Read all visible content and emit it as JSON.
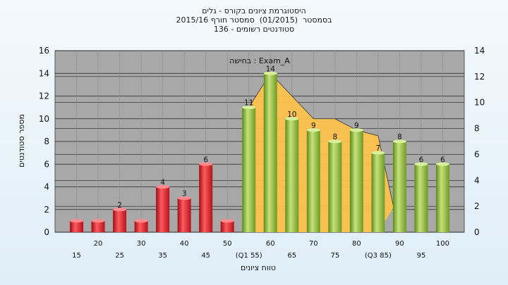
{
  "chart_data": {
    "type": "bar",
    "title_lines": [
      "היסטוגרמת ציונים בקורס - גלים",
      "בסמסטר  (01/2015)  סמסטר חורף 2015/16",
      "סטודנטים רשומים - 136"
    ],
    "annotation": "בחישה : Exam_A",
    "ylabel": "מספר סטודנטים",
    "xlabel": "טווח ציונים",
    "ylim": [
      0,
      16
    ],
    "y_ticks": [
      0,
      2,
      4,
      6,
      8,
      10,
      12,
      14,
      16
    ],
    "y2lim": [
      0,
      14
    ],
    "y2_ticks": [
      0,
      2,
      4,
      6,
      8,
      10,
      12,
      14
    ],
    "bars": [
      {
        "x": 10,
        "value": 1,
        "label": "",
        "group": "fail"
      },
      {
        "x": 15,
        "value": 1,
        "label": "",
        "group": "fail"
      },
      {
        "x": 20,
        "value": 2,
        "label": "2",
        "group": "fail"
      },
      {
        "x": 25,
        "value": 1,
        "label": "",
        "group": "fail"
      },
      {
        "x": 30,
        "value": 4,
        "label": "4",
        "group": "fail"
      },
      {
        "x": 35,
        "value": 3,
        "label": "3",
        "group": "fail"
      },
      {
        "x": 40,
        "value": 6,
        "label": "6",
        "group": "fail"
      },
      {
        "x": 45,
        "value": 1,
        "label": "",
        "group": "fail"
      },
      {
        "x": 50,
        "value": 11,
        "label": "11",
        "group": "pass"
      },
      {
        "x": 55,
        "value": 14,
        "label": "14",
        "group": "pass"
      },
      {
        "x": 60,
        "value": 10,
        "label": "10",
        "group": "pass"
      },
      {
        "x": 65,
        "value": 9,
        "label": "9",
        "group": "pass"
      },
      {
        "x": 70,
        "value": 8,
        "label": "8",
        "group": "pass"
      },
      {
        "x": 75,
        "value": 9,
        "label": "9",
        "group": "pass"
      },
      {
        "x": 80,
        "value": 7,
        "label": "7",
        "group": "pass"
      },
      {
        "x": 85,
        "value": 8,
        "label": "8",
        "group": "pass"
      },
      {
        "x": 90,
        "value": 6,
        "label": "6",
        "group": "pass"
      },
      {
        "x": 95,
        "value": 6,
        "label": "6",
        "group": "pass"
      }
    ],
    "x_tick_labels_lower": [
      {
        "x": 10,
        "text": "15"
      },
      {
        "x": 20,
        "text": "25"
      },
      {
        "x": 30,
        "text": "35"
      },
      {
        "x": 40,
        "text": "45"
      },
      {
        "x": 50,
        "text": "(Q1 55)"
      },
      {
        "x": 60,
        "text": "65"
      },
      {
        "x": 70,
        "text": "75"
      },
      {
        "x": 80,
        "text": "(Q3 85)"
      },
      {
        "x": 90,
        "text": "95"
      }
    ],
    "x_tick_labels_upper": [
      {
        "x": 15,
        "text": "20"
      },
      {
        "x": 25,
        "text": "30"
      },
      {
        "x": 35,
        "text": "40"
      },
      {
        "x": 45,
        "text": "50"
      },
      {
        "x": 55,
        "text": "60"
      },
      {
        "x": 65,
        "text": "70"
      },
      {
        "x": 75,
        "text": "80"
      },
      {
        "x": 85,
        "text": "90"
      },
      {
        "x": 95,
        "text": "100"
      }
    ],
    "interquartile_area": [
      {
        "x": 50,
        "y": 11
      },
      {
        "x": 55,
        "y": 14
      },
      {
        "x": 60,
        "y": 12
      },
      {
        "x": 65,
        "y": 10
      },
      {
        "x": 70,
        "y": 10
      },
      {
        "x": 75,
        "y": 9
      },
      {
        "x": 80,
        "y": 8.5
      }
    ],
    "grid": true,
    "colors": {
      "fail_bar": "#e8242b",
      "pass_bar": "#8fbf3a",
      "area": "#fdc24d",
      "plot_bg": "#a8a8a8"
    }
  }
}
